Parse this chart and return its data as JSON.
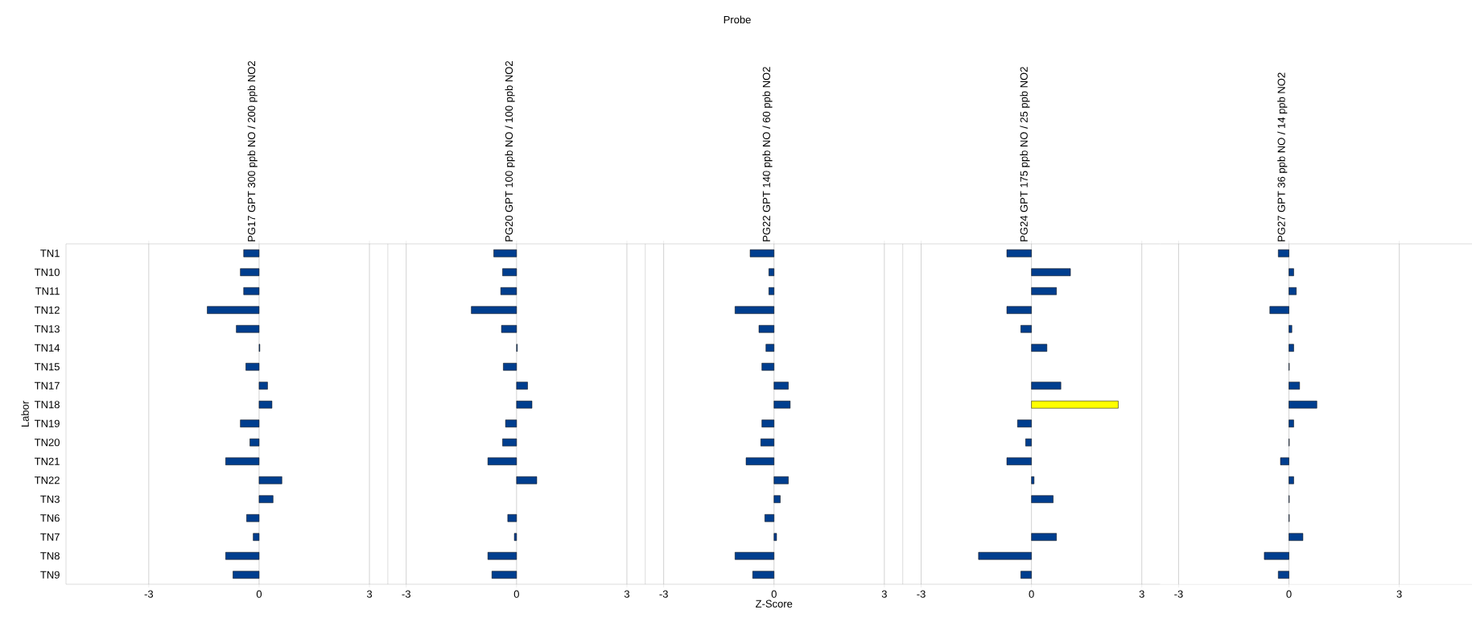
{
  "chart_data": [
    {
      "type": "bar",
      "orientation": "horizontal",
      "title": "PG17 GPT 300 ppb NO / 200 ppb NO2",
      "ylabel": "Labor",
      "categories": [
        "TN1",
        "TN10",
        "TN11",
        "TN12",
        "TN13",
        "TN14",
        "TN15",
        "TN17",
        "TN18",
        "TN19",
        "TN20",
        "TN21",
        "TN22",
        "TN3",
        "TN6",
        "TN7",
        "TN8",
        "TN9"
      ],
      "values": [
        -0.42,
        -0.51,
        -0.42,
        -1.41,
        -0.62,
        0.02,
        -0.36,
        0.23,
        0.35,
        -0.51,
        -0.25,
        -0.91,
        0.62,
        0.38,
        -0.34,
        -0.16,
        -0.91,
        -0.71
      ],
      "color": "#003e8e",
      "xlim": [
        -5.25,
        3.5
      ],
      "xticks": [
        -3,
        0,
        3
      ],
      "grid": "x"
    },
    {
      "type": "bar",
      "orientation": "horizontal",
      "title": "PG20 GPT 100 ppb NO / 100 ppb NO2",
      "tick_labels": "x",
      "categories": [
        null,
        null,
        null,
        null,
        null,
        null,
        null,
        null,
        null,
        null,
        null,
        null,
        null,
        null,
        null,
        null,
        null,
        null
      ],
      "values": [
        -0.62,
        -0.38,
        -0.43,
        -1.23,
        -0.41,
        0.02,
        -0.36,
        0.3,
        0.42,
        -0.3,
        -0.38,
        -0.78,
        0.55,
        null,
        -0.24,
        -0.06,
        -0.78,
        -0.67
      ],
      "color": "#003e8e",
      "xlim": [
        -3.5,
        3.5
      ],
      "xticks": [
        -3,
        0,
        3
      ],
      "grid": "x"
    },
    {
      "type": "bar",
      "orientation": "horizontal",
      "title": "PG22 GPT 140 ppb NO / 60 ppb NO2",
      "tick_labels": "x",
      "xlabel": "Z-Score",
      "x2label": "Probe",
      "categories": [
        null,
        null,
        null,
        null,
        null,
        null,
        null,
        null,
        null,
        null,
        null,
        null,
        null,
        null,
        null,
        null,
        null,
        null
      ],
      "values": [
        -0.65,
        -0.14,
        -0.14,
        -1.06,
        -0.41,
        -0.22,
        -0.33,
        0.39,
        0.44,
        -0.33,
        -0.36,
        -0.76,
        0.39,
        0.17,
        -0.25,
        0.07,
        -1.06,
        -0.58
      ],
      "color": "#003e8e",
      "xlim": [
        -3.5,
        3.5
      ],
      "xticks": [
        -3,
        0,
        3
      ],
      "grid": "x"
    },
    {
      "type": "bar",
      "orientation": "horizontal",
      "title": "PG24 GPT 175 ppb NO / 25 ppb NO2",
      "tick_labels": "x",
      "categories": [
        null,
        null,
        null,
        null,
        null,
        null,
        null,
        null,
        null,
        null,
        null,
        null,
        null,
        null,
        null,
        null,
        null,
        null
      ],
      "values": [
        -0.67,
        1.06,
        0.68,
        -0.67,
        -0.29,
        0.42,
        null,
        0.8,
        2.36,
        -0.38,
        -0.16,
        -0.67,
        0.07,
        0.59,
        null,
        0.68,
        -1.44,
        -0.29
      ],
      "colors": [
        "#003e8e",
        "#003e8e",
        "#003e8e",
        "#003e8e",
        "#003e8e",
        "#003e8e",
        "#003e8e",
        "#003e8e",
        "#ffff00",
        "#003e8e",
        "#003e8e",
        "#003e8e",
        "#003e8e",
        "#003e8e",
        "#003e8e",
        "#003e8e",
        "#003e8e",
        "#003e8e"
      ],
      "xlim": [
        -3.5,
        3.5
      ],
      "xticks": [
        -3,
        0,
        3
      ],
      "grid": "x"
    },
    {
      "type": "bar",
      "orientation": "horizontal",
      "title": "PG27 GPT 36 ppb NO / 14 ppb NO2",
      "tick_labels": "x",
      "categories": [
        null,
        null,
        null,
        null,
        null,
        null,
        null,
        null,
        null,
        null,
        null,
        null,
        null,
        null,
        null,
        null,
        null,
        null
      ],
      "values": [
        -0.29,
        0.13,
        0.2,
        -0.52,
        0.08,
        0.13,
        0.01,
        0.29,
        0.76,
        0.13,
        0.01,
        -0.23,
        0.13,
        0.01,
        0.01,
        0.38,
        -0.67,
        -0.29
      ],
      "color": "#003e8e",
      "xlim": [
        -3.5,
        5.0
      ],
      "xticks": [
        -3,
        0,
        3
      ],
      "grid": "x"
    }
  ]
}
